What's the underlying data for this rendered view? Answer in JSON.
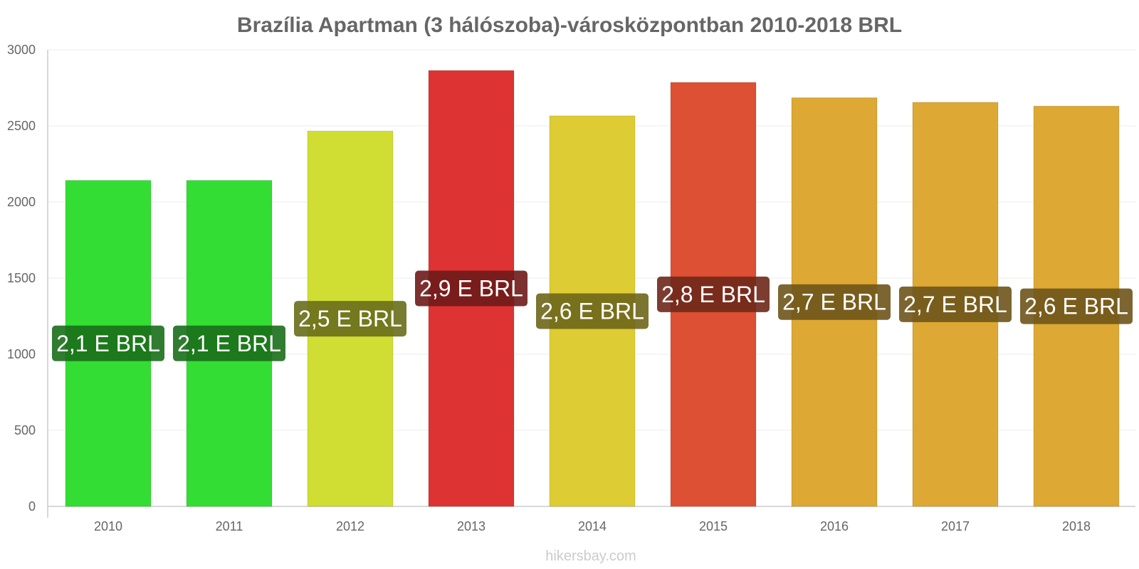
{
  "chart_data": {
    "type": "bar",
    "title": "Brazília Apartman (3 hálószoba)-városközpontban 2010-2018 BRL",
    "xlabel": "",
    "ylabel": "",
    "categories": [
      "2010",
      "2011",
      "2012",
      "2013",
      "2014",
      "2015",
      "2016",
      "2017",
      "2018"
    ],
    "values": [
      2142,
      2142,
      2466,
      2864,
      2566,
      2786,
      2685,
      2655,
      2630
    ],
    "data_labels": [
      "2,1 E BRL",
      "2,1 E BRL",
      "2,5 E BRL",
      "2,9 E BRL",
      "2,6 E BRL",
      "2,8 E BRL",
      "2,7 E BRL",
      "2,7 E BRL",
      "2,6 E BRL"
    ],
    "colors": [
      "#33dd33",
      "#33dd33",
      "#d0dd33",
      "#dd3333",
      "#ddcc33",
      "#dd5033",
      "#dda833",
      "#dda833",
      "#dda833"
    ],
    "label_bg_colors": [
      "#1a6e1a",
      "#1a6e1a",
      "#686e1a",
      "#6e1a1a",
      "#6e661a",
      "#6e281a",
      "#6e541a",
      "#6e541a",
      "#6e541a"
    ],
    "ylim": [
      0,
      3000
    ],
    "yticks": [
      0,
      500,
      1000,
      1500,
      2000,
      2500,
      3000
    ],
    "grid": true
  },
  "watermark": "hikersbay.com"
}
